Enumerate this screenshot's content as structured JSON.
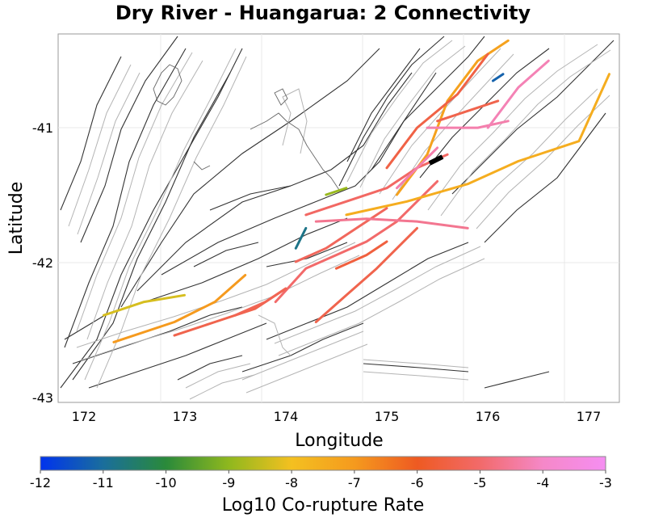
{
  "title": "Dry River - Huangarua: 2 Connectivity",
  "x_axis": {
    "label": "Longitude",
    "ticks": [
      "172",
      "173",
      "174",
      "175",
      "176",
      "177"
    ]
  },
  "y_axis": {
    "label": "Latitude",
    "ticks": [
      "-41",
      "-42",
      "-43"
    ]
  },
  "colorbar": {
    "label": "Log10 Co-rupture Rate",
    "ticks": [
      "-12",
      "-11",
      "-10",
      "-9",
      "-8",
      "-7",
      "-6",
      "-5",
      "-4",
      "-3"
    ],
    "colors": [
      "#0033ee",
      "#1a6e9c",
      "#2a8a3a",
      "#8fb81e",
      "#f4c020",
      "#f59a1e",
      "#ee5a22",
      "#f26a6a",
      "#f588c8",
      "#f58ef2"
    ]
  },
  "source_fault": {
    "name": "Dry River - Huangarua",
    "color": "#000000"
  },
  "chart_data": {
    "type": "map",
    "title": "Dry River - Huangarua: 2 Connectivity",
    "xlabel": "Longitude",
    "ylabel": "Latitude",
    "xlim": [
      171.75,
      177.3
    ],
    "ylim": [
      -43.05,
      -40.3
    ],
    "colorbar_range": [
      -12,
      -3
    ],
    "colored_faults": [
      {
        "rate": -7.0,
        "coords": [
          [
            172.3,
            -42.6
          ],
          [
            172.9,
            -42.45
          ],
          [
            173.3,
            -42.3
          ],
          [
            173.6,
            -42.1
          ]
        ]
      },
      {
        "rate": -8.3,
        "coords": [
          [
            172.2,
            -42.4
          ],
          [
            172.6,
            -42.3
          ],
          [
            173.0,
            -42.25
          ]
        ]
      },
      {
        "rate": -5.4,
        "coords": [
          [
            172.9,
            -42.55
          ],
          [
            173.3,
            -42.45
          ],
          [
            173.7,
            -42.35
          ],
          [
            174.0,
            -42.2
          ]
        ]
      },
      {
        "rate": -5.0,
        "coords": [
          [
            173.9,
            -42.3
          ],
          [
            174.2,
            -42.05
          ],
          [
            174.5,
            -41.95
          ],
          [
            174.8,
            -41.85
          ],
          [
            175.1,
            -41.7
          ],
          [
            175.3,
            -41.55
          ],
          [
            175.5,
            -41.4
          ]
        ]
      },
      {
        "rate": -5.4,
        "coords": [
          [
            174.3,
            -42.45
          ],
          [
            174.6,
            -42.25
          ],
          [
            174.9,
            -42.05
          ],
          [
            175.1,
            -41.9
          ],
          [
            175.3,
            -41.75
          ]
        ]
      },
      {
        "rate": -5.2,
        "coords": [
          [
            174.1,
            -42.0
          ],
          [
            174.4,
            -41.9
          ],
          [
            174.7,
            -41.75
          ],
          [
            175.0,
            -41.6
          ]
        ]
      },
      {
        "rate": -5.1,
        "coords": [
          [
            174.2,
            -41.65
          ],
          [
            174.6,
            -41.55
          ],
          [
            175.0,
            -41.45
          ],
          [
            175.3,
            -41.3
          ],
          [
            175.6,
            -41.2
          ]
        ]
      },
      {
        "rate": -4.6,
        "coords": [
          [
            174.3,
            -41.7
          ],
          [
            174.8,
            -41.68
          ],
          [
            175.3,
            -41.7
          ],
          [
            175.8,
            -41.75
          ]
        ]
      },
      {
        "rate": -7.5,
        "coords": [
          [
            174.6,
            -41.65
          ],
          [
            175.2,
            -41.55
          ],
          [
            175.8,
            -41.42
          ],
          [
            176.3,
            -41.25
          ],
          [
            176.9,
            -41.1
          ],
          [
            177.2,
            -40.6
          ]
        ]
      },
      {
        "rate": -7.2,
        "coords": [
          [
            175.1,
            -41.5
          ],
          [
            175.4,
            -41.2
          ],
          [
            175.6,
            -40.8
          ],
          [
            175.9,
            -40.5
          ],
          [
            176.2,
            -40.35
          ]
        ]
      },
      {
        "rate": -5.5,
        "coords": [
          [
            175.0,
            -41.3
          ],
          [
            175.3,
            -41.0
          ],
          [
            175.7,
            -40.75
          ],
          [
            176.0,
            -40.45
          ]
        ]
      },
      {
        "rate": -4.3,
        "coords": [
          [
            175.1,
            -41.45
          ],
          [
            175.3,
            -41.3
          ],
          [
            175.5,
            -41.15
          ]
        ]
      },
      {
        "rate": -4.3,
        "coords": [
          [
            175.4,
            -41.0
          ],
          [
            175.9,
            -41.0
          ],
          [
            176.2,
            -40.95
          ]
        ]
      },
      {
        "rate": -4.2,
        "coords": [
          [
            176.0,
            -41.0
          ],
          [
            176.3,
            -40.7
          ],
          [
            176.6,
            -40.5
          ]
        ]
      },
      {
        "rate": -5.4,
        "coords": [
          [
            175.5,
            -40.95
          ],
          [
            175.9,
            -40.85
          ],
          [
            176.1,
            -40.8
          ]
        ]
      },
      {
        "rate": -10.8,
        "coords": [
          [
            174.1,
            -41.9
          ],
          [
            174.2,
            -41.75
          ]
        ]
      },
      {
        "rate": -8.9,
        "coords": [
          [
            174.4,
            -41.5
          ],
          [
            174.6,
            -41.45
          ]
        ]
      },
      {
        "rate": -11.2,
        "coords": [
          [
            176.05,
            -40.65
          ],
          [
            176.15,
            -40.6
          ]
        ]
      },
      {
        "rate": -5.6,
        "coords": [
          [
            174.5,
            -42.05
          ],
          [
            174.8,
            -41.95
          ],
          [
            175.0,
            -41.85
          ]
        ]
      },
      {
        "rate": -5.3,
        "coords": [
          [
            173.5,
            -42.4
          ],
          [
            173.8,
            -42.3
          ],
          [
            174.0,
            -42.2
          ]
        ]
      }
    ]
  }
}
